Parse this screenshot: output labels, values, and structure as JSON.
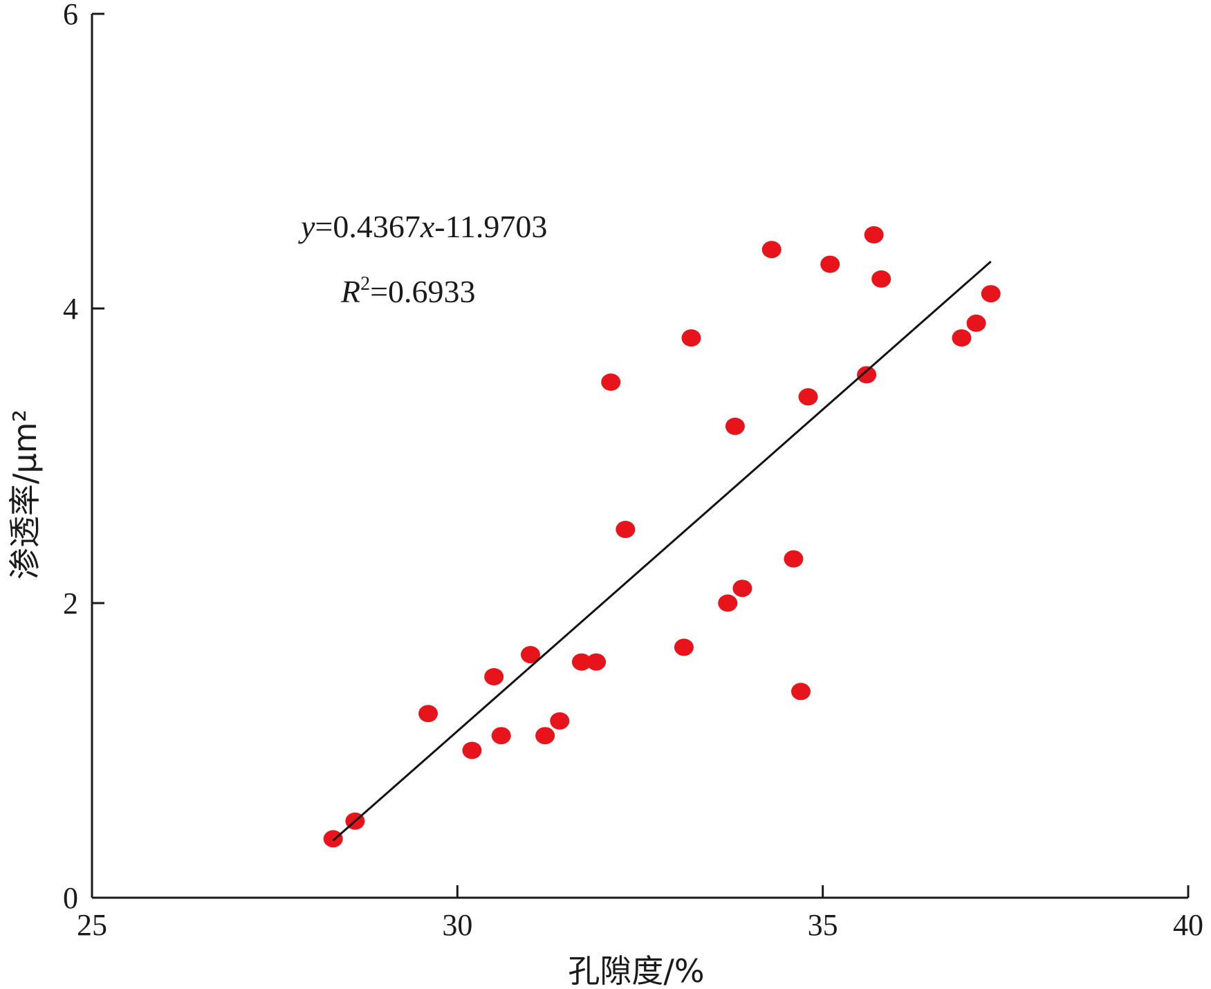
{
  "chart_data": {
    "type": "scatter",
    "xlabel": "孔隙度/%",
    "ylabel": "渗透率/μm²",
    "xlim": [
      25,
      40
    ],
    "ylim": [
      0,
      6
    ],
    "xticks": [
      "25",
      "30",
      "35",
      "40"
    ],
    "yticks": [
      "0",
      "2",
      "4",
      "6"
    ],
    "marker_color": "#e8141c",
    "line_color": "#111111",
    "fit": {
      "slope": 0.4367,
      "intercept": -11.9703,
      "x_range": [
        28.3,
        37.3
      ],
      "equation_y": "y",
      "equation_rest": "=0.4367",
      "equation_x": "x",
      "equation_tail": "-11.9703",
      "r2_label": "R",
      "r2_sup": "2",
      "r2_value": "=0.6933"
    },
    "points": [
      {
        "x": 28.3,
        "y": 0.4
      },
      {
        "x": 28.6,
        "y": 0.52
      },
      {
        "x": 29.6,
        "y": 1.25
      },
      {
        "x": 30.2,
        "y": 1.0
      },
      {
        "x": 30.5,
        "y": 1.5
      },
      {
        "x": 30.6,
        "y": 1.1
      },
      {
        "x": 31.0,
        "y": 1.65
      },
      {
        "x": 31.2,
        "y": 1.1
      },
      {
        "x": 31.4,
        "y": 1.2
      },
      {
        "x": 31.7,
        "y": 1.6
      },
      {
        "x": 31.9,
        "y": 1.6
      },
      {
        "x": 32.1,
        "y": 3.5
      },
      {
        "x": 32.3,
        "y": 2.5
      },
      {
        "x": 33.1,
        "y": 1.7
      },
      {
        "x": 33.2,
        "y": 3.8
      },
      {
        "x": 33.7,
        "y": 2.0
      },
      {
        "x": 33.8,
        "y": 3.2
      },
      {
        "x": 33.9,
        "y": 2.1
      },
      {
        "x": 34.3,
        "y": 4.4
      },
      {
        "x": 34.6,
        "y": 2.3
      },
      {
        "x": 34.7,
        "y": 1.4
      },
      {
        "x": 34.8,
        "y": 3.4
      },
      {
        "x": 35.1,
        "y": 4.3
      },
      {
        "x": 35.6,
        "y": 3.55
      },
      {
        "x": 35.7,
        "y": 4.5
      },
      {
        "x": 35.8,
        "y": 4.2
      },
      {
        "x": 36.9,
        "y": 3.8
      },
      {
        "x": 37.1,
        "y": 3.9
      },
      {
        "x": 37.3,
        "y": 4.1
      }
    ]
  }
}
